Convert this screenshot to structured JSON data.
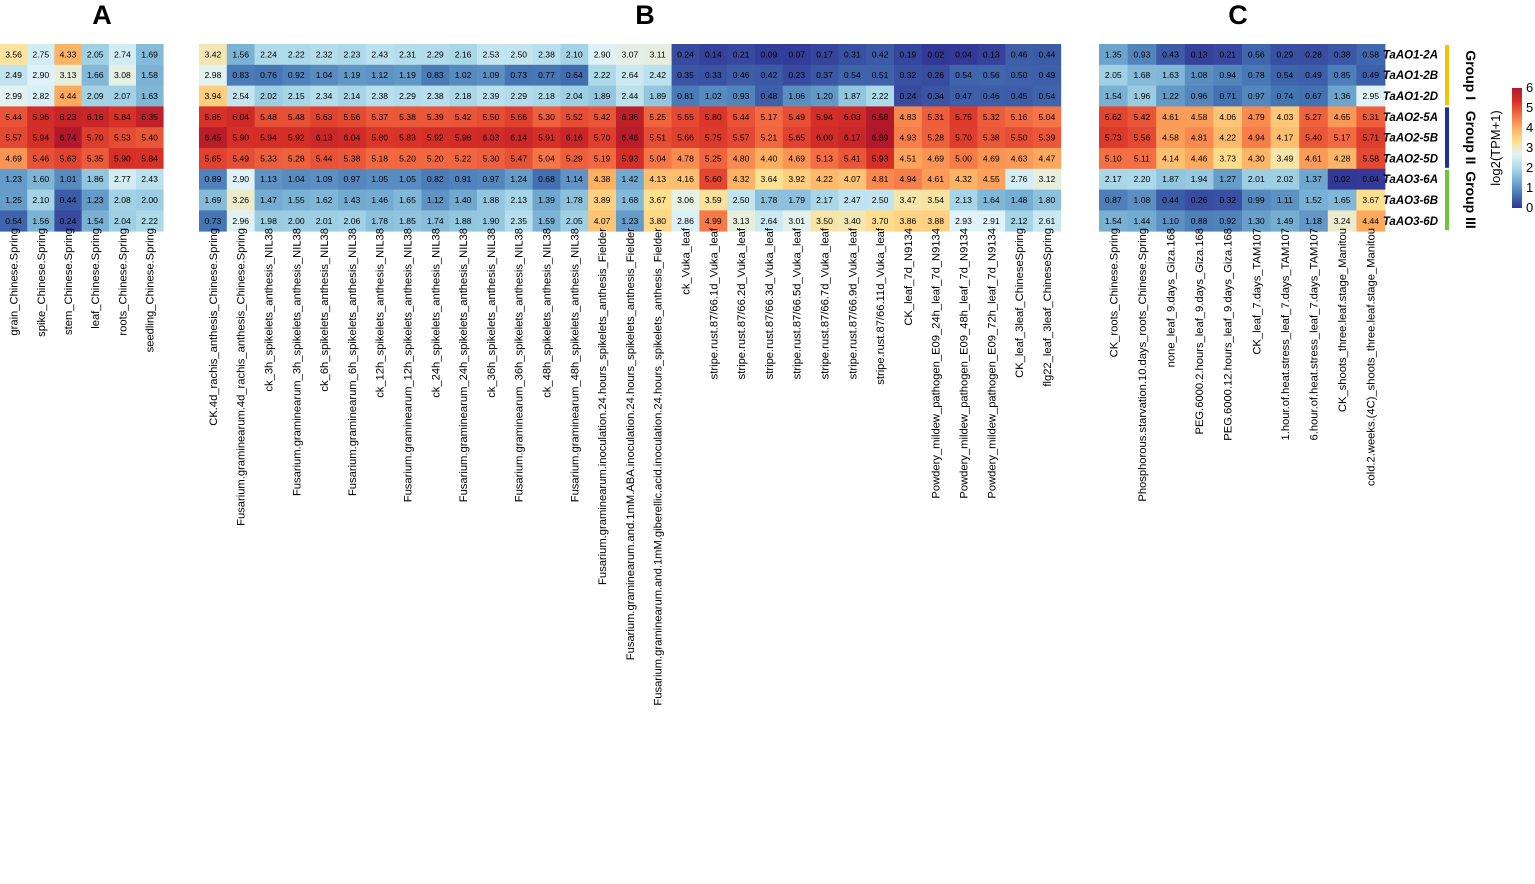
{
  "chart_data": [
    {
      "type": "heatmap",
      "panel": "A",
      "columns": [
        "grain_Chinese.Spring",
        "spike_Chinese.Spring",
        "stem_Chinese.Spring",
        "leaf_Chinese.Spring",
        "roots_Chinese.Spring",
        "seedling_Chinese.Spring"
      ],
      "values": [
        [
          "3.56",
          "2.75",
          "4.33",
          "2.05",
          "2.74",
          "1.69"
        ],
        [
          "2.49",
          "2.90",
          "3.13",
          "1.66",
          "3.08",
          "1.58"
        ],
        [
          "2.99",
          "2.82",
          "4.44",
          "2.09",
          "2.07",
          "1.63"
        ],
        [
          "5.44",
          "5.96",
          "6.23",
          "6.16",
          "5.84",
          "6.35"
        ],
        [
          "5.57",
          "5.94",
          "6.74",
          "5.70",
          "5.53",
          "5.40"
        ],
        [
          "4.69",
          "5.46",
          "5.63",
          "5.35",
          "5.90",
          "5.84"
        ],
        [
          "1.23",
          "1.60",
          "1.01",
          "1.86",
          "2.77",
          "2.43"
        ],
        [
          "1.25",
          "2.10",
          "0.44",
          "1.23",
          "2.08",
          "2.00"
        ],
        [
          "0.54",
          "1.56",
          "0.24",
          "1.54",
          "2.04",
          "2.22"
        ]
      ]
    },
    {
      "type": "heatmap",
      "panel": "B",
      "columns": [
        "CK.4d_rachis_anthesis_Chinese.Spring",
        "Fusarium.graminearum.4d_rachis_anthesis_Chinese.Spring",
        "ck_3h_spikelets_anthesis_NIL38",
        "Fusarium.graminearum_3h_spikelets_anthesis_NIL38",
        "ck_6h_spikelets_anthesis_NIL38",
        "Fusarium.graminearum_6h_spikelets_anthesis_NIL38",
        "ck_12h_spikelets_anthesis_NIL38",
        "Fusarium.graminearum_12h_spikelets_anthesis_NIL38",
        "ck_24h_spikelets_anthesis_NIL38",
        "Fusarium.graminearum_24h_spikelets_anthesis_NIL38",
        "ck_36h_spikelets_anthesis_NIL38",
        "Fusarium.graminearum_36h_spikelets_anthesis_NIL38",
        "ck_48h_spikelets_anthesis_NIL38",
        "Fusarium.graminearum_48h_spikelets_anthesis_NIL38",
        "Fusarium.graminearum.inoculation.24.hours_spikelets_anthesis_Fielder",
        "Fusarium.graminearum.and.1mM.ABA.inoculation.24.hours_spikelets_anthesis_Fielder",
        "Fusarium.graminearum.and.1mM.giberellic.acid.inoculation.24.hours_spikelets_anthesis_Fielder",
        "ck_Vuka_leaf",
        "stripe.rust.87/66.1d_Vuka_leaf",
        "stripe.rust.87/66.2d_Vuka_leaf",
        "stripe.rust.87/66.3d_Vuka_leaf",
        "stripe.rust.87/66.5d_Vuka_leaf",
        "stripe.rust.87/66.7d_Vuka_leaf",
        "stripe.rust.87/66.9d_Vuka_leaf",
        "stripe.rust.87/66.11d_Vuka_leaf",
        "CK_leaf_7d_N9134",
        "Powdery_mildew_pathogen_E09_24h_leaf_7d_N9134",
        "Powdery_mildew_pathogen_E09_48h_leaf_7d_N9134",
        "Powdery_mildew_pathogen_E09_72h_leaf_7d_N9134",
        "CK_leaf_3leaf_ChineseSpring",
        "flg22_leaf_3leaf_ChineseSpring"
      ],
      "values": [
        [
          "3.42",
          "1.56",
          "2.24",
          "2.22",
          "2.32",
          "2.23",
          "2.43",
          "2.31",
          "2.29",
          "2.16",
          "2.53",
          "2.50",
          "2.38",
          "2.10",
          "2.90",
          "3.07",
          "3.11",
          "0.24",
          "0.14",
          "0.21",
          "0.09",
          "0.07",
          "0.17",
          "0.31",
          "0.42",
          "0.19",
          "0.02",
          "0.04",
          "0.13",
          "0.46",
          "0.44"
        ],
        [
          "2.98",
          "0.83",
          "0.76",
          "0.92",
          "1.04",
          "1.19",
          "1.12",
          "1.19",
          "0.83",
          "1.02",
          "1.09",
          "0.73",
          "0.77",
          "0.64",
          "2.22",
          "2.64",
          "2.42",
          "0.35",
          "0.33",
          "0.46",
          "0.42",
          "0.23",
          "0.37",
          "0.54",
          "0.51",
          "0.32",
          "0.26",
          "0.54",
          "0.56",
          "0.50",
          "0.49"
        ],
        [
          "3.94",
          "2.54",
          "2.02",
          "2.15",
          "2.34",
          "2.14",
          "2.38",
          "2.29",
          "2.38",
          "2.18",
          "2.39",
          "2.29",
          "2.18",
          "2.04",
          "1.89",
          "2.44",
          "1.89",
          "0.81",
          "1.02",
          "0.93",
          "0.48",
          "1.06",
          "1.20",
          "1.87",
          "2.22",
          "0.24",
          "0.34",
          "0.47",
          "0.46",
          "0.45",
          "0.54"
        ],
        [
          "5.85",
          "6.04",
          "5.48",
          "5.48",
          "5.63",
          "5.56",
          "5.37",
          "5.38",
          "5.39",
          "5.42",
          "5.50",
          "5.66",
          "5.30",
          "5.52",
          "5.42",
          "6.36",
          "5.25",
          "5.55",
          "5.80",
          "5.44",
          "5.17",
          "5.49",
          "5.94",
          "6.03",
          "6.58",
          "4.83",
          "5.31",
          "5.75",
          "5.32",
          "5.16",
          "5.04"
        ],
        [
          "6.45",
          "5.90",
          "5.94",
          "5.92",
          "6.13",
          "6.04",
          "5.80",
          "5.83",
          "5.92",
          "5.98",
          "6.03",
          "6.14",
          "5.91",
          "6.16",
          "5.70",
          "6.46",
          "5.51",
          "5.66",
          "5.75",
          "5.57",
          "5.21",
          "5.65",
          "6.00",
          "6.17",
          "6.89",
          "4.93",
          "5.28",
          "5.70",
          "5.38",
          "5.50",
          "5.39"
        ],
        [
          "5.65",
          "5.49",
          "5.33",
          "5.28",
          "5.44",
          "5.38",
          "5.18",
          "5.20",
          "5.20",
          "5.22",
          "5.30",
          "5.47",
          "5.04",
          "5.29",
          "5.19",
          "5.93",
          "5.04",
          "4.78",
          "5.25",
          "4.80",
          "4.40",
          "4.69",
          "5.13",
          "5.41",
          "5.93",
          "4.51",
          "4.69",
          "5.00",
          "4.69",
          "4.63",
          "4.47"
        ],
        [
          "0.89",
          "2.90",
          "1.13",
          "1.04",
          "1.09",
          "0.97",
          "1.05",
          "1.05",
          "0.82",
          "0.91",
          "0.97",
          "1.24",
          "0.68",
          "1.14",
          "4.38",
          "1.42",
          "4.13",
          "4.16",
          "5.60",
          "4.32",
          "3.64",
          "3.92",
          "4.22",
          "4.07",
          "4.81",
          "4.94",
          "4.61",
          "4.32",
          "4.55",
          "2.76",
          "3.12"
        ],
        [
          "1.69",
          "3.26",
          "1.47",
          "1.55",
          "1.62",
          "1.43",
          "1.46",
          "1.65",
          "1.12",
          "1.40",
          "1.88",
          "2.13",
          "1.39",
          "1.78",
          "3.89",
          "1.68",
          "3.67",
          "3.06",
          "3.59",
          "2.50",
          "1.78",
          "1.79",
          "2.17",
          "2.47",
          "2.50",
          "3.47",
          "3.54",
          "2.13",
          "1.64",
          "1.48",
          "1.80"
        ],
        [
          "0.73",
          "2.96",
          "1.98",
          "2.00",
          "2.01",
          "2.06",
          "1.78",
          "1.85",
          "1.74",
          "1.88",
          "1.90",
          "2.35",
          "1.59",
          "2.05",
          "4.07",
          "1.23",
          "3.80",
          "2.86",
          "4.99",
          "3.13",
          "2.64",
          "3.01",
          "3.50",
          "3.40",
          "3.70",
          "3.86",
          "3.88",
          "2.93",
          "2.91",
          "2.12",
          "2.61"
        ]
      ]
    },
    {
      "type": "heatmap",
      "panel": "C",
      "columns": [
        "CK_roots_Chinese.Spring",
        "Phosphorous.starvation.10.days_roots_Chinese.Spring",
        "none_leaf_9.days_Giza.168",
        "PEG.6000.2.hours_leaf_9.days_Giza.168",
        "PEG.6000.12.hours_leaf_9.days_Giza.168",
        "CK_leaf_7.days_TAM107",
        "1.hour.of.heat.stress_leaf_7.days_TAM107",
        "6.hour.of.heat.stress_leaf_7.days_TAM107",
        "CK_shoots_three.leaf.stage_Manitou",
        "cold.2.weeks.(4C)_shoots_three.leaf.stage_Manitou"
      ],
      "values": [
        [
          "1.35",
          "0.93",
          "0.43",
          "0.13",
          "0.21",
          "0.56",
          "0.29",
          "0.28",
          "0.38",
          "0.58"
        ],
        [
          "2.05",
          "1.68",
          "1.63",
          "1.08",
          "0.94",
          "0.78",
          "0.54",
          "0.49",
          "0.85",
          "0.49"
        ],
        [
          "1.54",
          "1.96",
          "1.22",
          "0.96",
          "0.71",
          "0.97",
          "0.74",
          "0.67",
          "1.36",
          "2.95"
        ],
        [
          "5.62",
          "5.42",
          "4.61",
          "4.58",
          "4.06",
          "4.79",
          "4.03",
          "5.27",
          "4.65",
          "5.31"
        ],
        [
          "5.73",
          "5.56",
          "4.58",
          "4.81",
          "4.22",
          "4.94",
          "4.17",
          "5.40",
          "5.17",
          "5.71"
        ],
        [
          "5.10",
          "5.11",
          "4.14",
          "4.46",
          "3.73",
          "4.30",
          "3.49",
          "4.61",
          "4.28",
          "5.58"
        ],
        [
          "2.17",
          "2.20",
          "1.87",
          "1.94",
          "1.27",
          "2.01",
          "2.02",
          "1.37",
          "0.02",
          "0.04"
        ],
        [
          "0.87",
          "1.08",
          "0.44",
          "0.26",
          "0.32",
          "0.99",
          "1.11",
          "1.52",
          "1.65",
          "3.67"
        ],
        [
          "1.54",
          "1.44",
          "1.10",
          "0.88",
          "0.92",
          "1.30",
          "1.49",
          "1.18",
          "3.24",
          "4.44"
        ]
      ]
    }
  ],
  "panels": {
    "a": "A",
    "b": "B",
    "c": "C"
  },
  "rows": [
    "TaAO1-2A",
    "TaAO1-2B",
    "TaAO1-2D",
    "TaAO2-5A",
    "TaAO2-5B",
    "TaAO2-5D",
    "TaAO3-6A",
    "TaAO3-6B",
    "TaAO3-6D"
  ],
  "groups": [
    {
      "label": "Group I",
      "color": "#f5c400"
    },
    {
      "label": "Group II",
      "color": "#1a2ea0"
    },
    {
      "label": "Group III",
      "color": "#6cc43a"
    }
  ],
  "legend": {
    "title": "log2(TPM+1)",
    "ticks": [
      "6",
      "5",
      "4",
      "3",
      "2",
      "1",
      "0"
    ],
    "colors": [
      "#b2182b",
      "#d73027",
      "#f46d43",
      "#fdae61",
      "#fee090",
      "#e0f3f8",
      "#abd9e9",
      "#74add1",
      "#4575b4",
      "#313695"
    ]
  }
}
